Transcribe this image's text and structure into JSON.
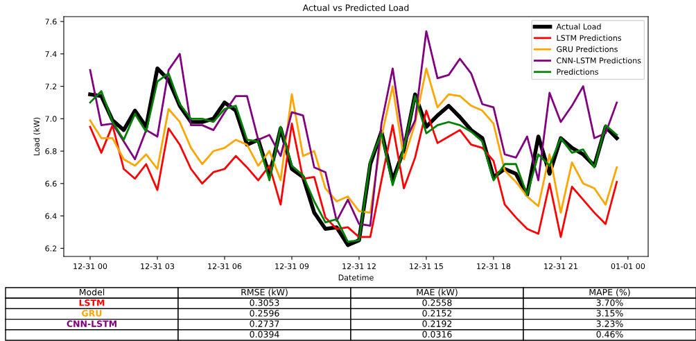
{
  "chart_data": {
    "type": "line",
    "title": "Actual vs Predicted Load",
    "xlabel": "Datetime",
    "ylabel": "Load (kW)",
    "categories": [
      "12-31 00",
      null,
      null,
      null,
      null,
      null,
      "12-31 03",
      null,
      null,
      null,
      null,
      null,
      "12-31 06",
      null,
      null,
      null,
      null,
      null,
      "12-31 09",
      null,
      null,
      null,
      null,
      null,
      "12-31 12",
      null,
      null,
      null,
      null,
      null,
      "12-31 15",
      null,
      null,
      null,
      null,
      null,
      "12-31 18",
      null,
      null,
      null,
      null,
      null,
      "12-31 21",
      null,
      null,
      null,
      null,
      null,
      "01-01 00"
    ],
    "series": [
      {
        "name": "Actual Load",
        "color": "#000000",
        "values": [
          7.15,
          7.14,
          6.99,
          6.93,
          7.05,
          6.95,
          7.31,
          7.24,
          7.08,
          6.98,
          6.98,
          7.0,
          7.1,
          7.05,
          6.84,
          6.87,
          6.65,
          6.94,
          6.69,
          6.64,
          6.42,
          6.32,
          6.33,
          6.22,
          6.25,
          6.72,
          6.92,
          6.62,
          6.81,
          7.15,
          6.95,
          7.02,
          7.08,
          7.01,
          6.93,
          6.88,
          6.64,
          6.69,
          6.66,
          6.53,
          6.89,
          6.66,
          6.88,
          6.82,
          6.78,
          6.71,
          6.95,
          6.88,
          null
        ]
      },
      {
        "name": "LSTM Predictions",
        "color": "#ff0000",
        "values": [
          6.95,
          6.79,
          6.96,
          6.69,
          6.63,
          6.72,
          6.56,
          6.94,
          6.84,
          6.69,
          6.6,
          6.67,
          6.69,
          6.77,
          6.7,
          6.62,
          6.71,
          6.47,
          6.97,
          6.63,
          6.64,
          6.39,
          6.32,
          6.33,
          6.27,
          6.27,
          6.62,
          6.96,
          6.57,
          6.76,
          7.05,
          6.85,
          6.89,
          6.93,
          6.84,
          6.82,
          6.74,
          6.47,
          6.39,
          6.32,
          6.29,
          6.6,
          6.27,
          6.58,
          6.5,
          6.42,
          6.35,
          6.61,
          null
        ]
      },
      {
        "name": "GRU Predictions",
        "color": "#ffa500",
        "values": [
          6.99,
          6.88,
          6.88,
          6.75,
          6.71,
          6.78,
          6.69,
          7.06,
          6.98,
          6.82,
          6.72,
          6.8,
          6.82,
          6.87,
          6.84,
          6.71,
          6.8,
          6.62,
          7.15,
          6.77,
          6.8,
          6.57,
          6.49,
          6.52,
          6.43,
          6.42,
          6.89,
          7.2,
          6.75,
          6.97,
          7.31,
          7.07,
          7.15,
          7.14,
          7.08,
          7.05,
          6.97,
          6.68,
          6.61,
          6.52,
          6.46,
          6.78,
          6.42,
          6.73,
          6.6,
          6.57,
          6.47,
          6.7,
          null
        ]
      },
      {
        "name": "CNN-LSTM Predictions",
        "color": "#800080",
        "values": [
          7.3,
          6.96,
          6.97,
          6.86,
          6.75,
          6.93,
          6.89,
          7.3,
          7.4,
          6.96,
          6.96,
          6.93,
          7.04,
          7.14,
          7.14,
          6.87,
          6.9,
          6.77,
          7.04,
          7.02,
          6.7,
          6.67,
          6.37,
          6.5,
          6.35,
          6.34,
          6.97,
          7.31,
          6.84,
          6.99,
          7.54,
          7.25,
          7.27,
          7.37,
          7.28,
          7.09,
          7.07,
          6.78,
          6.76,
          6.89,
          6.62,
          7.16,
          6.98,
          7.08,
          7.2,
          6.88,
          6.91,
          7.1,
          null
        ]
      },
      {
        "name": "Predictions",
        "color": "#008000",
        "values": [
          7.1,
          7.17,
          6.98,
          6.87,
          7.03,
          6.92,
          7.23,
          7.28,
          7.09,
          7.0,
          7.0,
          6.98,
          7.06,
          7.08,
          6.87,
          6.86,
          6.62,
          6.95,
          6.71,
          6.65,
          6.49,
          6.36,
          6.38,
          6.24,
          6.25,
          6.74,
          6.91,
          6.59,
          6.82,
          7.14,
          6.91,
          6.96,
          6.98,
          6.96,
          6.92,
          6.86,
          6.62,
          6.72,
          6.72,
          6.53,
          6.78,
          6.71,
          6.88,
          6.79,
          6.81,
          6.7,
          6.96,
          6.9,
          null
        ]
      }
    ],
    "ylim": [
      6.15,
      7.63
    ],
    "yticks": [
      6.2,
      6.4,
      6.6,
      6.8,
      {
        "value": 7.0,
        "label": "7.0"
      },
      7.2,
      7.4,
      7.6
    ],
    "grid": false,
    "legend": "top right",
    "marker": "none",
    "line_style": "solid",
    "annotations": [
      "Model",
      "RMSE (kW)",
      "MAE (kW)",
      "MAPE (%)",
      "LSTM",
      "0.3053",
      "0.2558",
      "3.70%",
      "GRU",
      "0.2596",
      "0.2152",
      "3.15%",
      "CNN-LSTM",
      "0.2737",
      "0.2192",
      "3.23%",
      null,
      "0.0394",
      "0.0316",
      "0.46%"
    ]
  }
}
